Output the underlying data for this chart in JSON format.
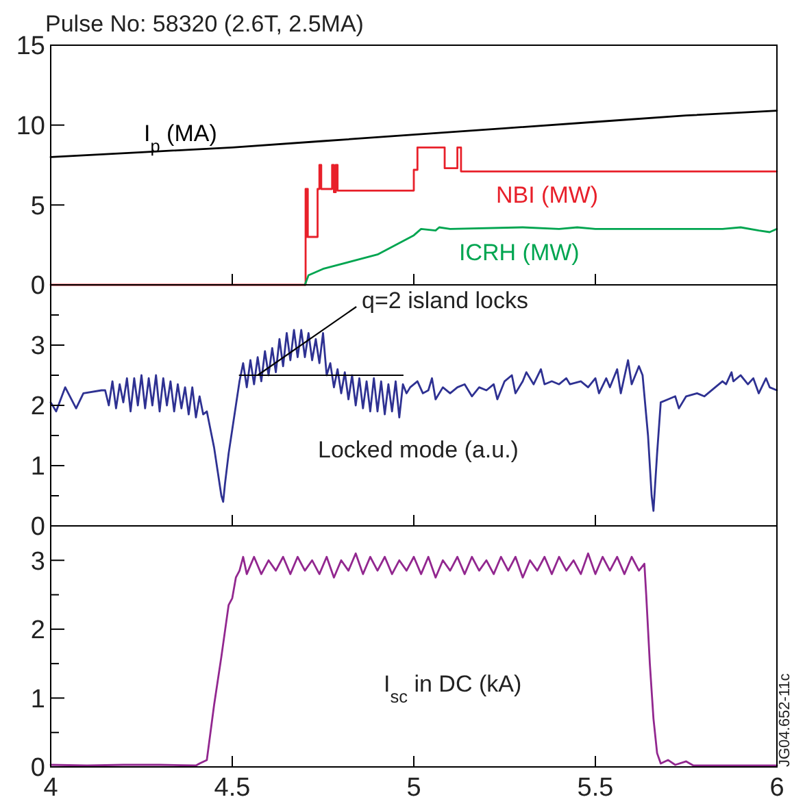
{
  "chart_data": [
    {
      "type": "line",
      "title": "Pulse No: 58320 (2.6T, 2.5MA)",
      "xlim": [
        4,
        6
      ],
      "xticks": [
        4,
        4.5,
        5,
        5.5,
        6
      ],
      "ylim": [
        0,
        15
      ],
      "yticks": [
        0,
        5,
        10,
        15
      ],
      "tick_labels": "y",
      "legend": false,
      "grid": false,
      "series": [
        {
          "name": "I$_{p}$ (MA)",
          "color": "#000000",
          "x": [
            4,
            4.25,
            4.5,
            4.75,
            5,
            5.25,
            5.5,
            5.75,
            6
          ],
          "values": [
            8,
            8.3,
            8.6,
            9.0,
            9.4,
            9.8,
            10.2,
            10.6,
            10.9
          ]
        },
        {
          "name": "NBI (MW)",
          "color": "#e8202a",
          "type": "step",
          "x": [
            4,
            4.7,
            4.702,
            4.704,
            4.706,
            4.708,
            4.735,
            4.74,
            4.745,
            4.775,
            4.78,
            4.785,
            4.79,
            5.0,
            5.01,
            5.085,
            5.12,
            5.13,
            6
          ],
          "values": [
            0,
            0,
            6,
            3,
            6,
            3,
            6,
            7.5,
            6,
            7.5,
            5.8,
            7.5,
            5.9,
            7.2,
            8.6,
            7.3,
            8.6,
            7.1,
            7.1
          ]
        },
        {
          "name": "ICRH (MW)",
          "color": "#00a550",
          "x": [
            4.7,
            4.71,
            4.75,
            4.85,
            4.9,
            4.95,
            5.0,
            5.02,
            5.06,
            5.07,
            5.1,
            5.3,
            5.4,
            5.45,
            5.5,
            5.85,
            5.9,
            5.95,
            5.98,
            6.0
          ],
          "values": [
            0,
            0.6,
            1.0,
            1.6,
            1.9,
            2.5,
            3.1,
            3.5,
            3.4,
            3.6,
            3.5,
            3.6,
            3.5,
            3.6,
            3.5,
            3.5,
            3.6,
            3.4,
            3.3,
            3.5
          ]
        }
      ]
    },
    {
      "type": "line",
      "xlim": [
        4,
        6
      ],
      "xticks": [
        4,
        4.5,
        5,
        5.5,
        6
      ],
      "ylim": [
        0,
        4
      ],
      "yticks": [
        0,
        {
          "value": 0.5,
          "label": null
        },
        1,
        {
          "value": 1.5,
          "label": null
        },
        2,
        {
          "value": 2.5,
          "label": null
        },
        3,
        {
          "value": 3.5,
          "label": null
        }
      ],
      "tick_labels": "y",
      "legend": false,
      "grid": false,
      "annotations": [
        {
          "text": "q=2 island locks",
          "x": 4.57,
          "y": 2.5
        }
      ],
      "series": [
        {
          "name": "Locked mode (a.u.)",
          "color": "#2e3192",
          "x": [
            4,
            4.015,
            4.04,
            4.07,
            4.09,
            4.14,
            4.15,
            4.16,
            4.17,
            4.18,
            4.19,
            4.2,
            4.21,
            4.22,
            4.23,
            4.24,
            4.25,
            4.26,
            4.27,
            4.28,
            4.29,
            4.3,
            4.31,
            4.32,
            4.33,
            4.34,
            4.35,
            4.36,
            4.37,
            4.38,
            4.39,
            4.4,
            4.41,
            4.42,
            4.43,
            4.44,
            4.45,
            4.46,
            4.47,
            4.475,
            4.48,
            4.49,
            4.5,
            4.51,
            4.52,
            4.53,
            4.54,
            4.55,
            4.56,
            4.57,
            4.58,
            4.59,
            4.6,
            4.61,
            4.62,
            4.63,
            4.64,
            4.65,
            4.66,
            4.67,
            4.68,
            4.69,
            4.7,
            4.71,
            4.72,
            4.73,
            4.74,
            4.75,
            4.76,
            4.77,
            4.78,
            4.79,
            4.8,
            4.81,
            4.82,
            4.83,
            4.84,
            4.85,
            4.86,
            4.87,
            4.88,
            4.89,
            4.9,
            4.91,
            4.92,
            4.93,
            4.94,
            4.95,
            4.96,
            4.97,
            4.98,
            4.99,
            5.01,
            5.025,
            5.04,
            5.05,
            5.06,
            5.08,
            5.1,
            5.12,
            5.14,
            5.16,
            5.18,
            5.2,
            5.22,
            5.23,
            5.25,
            5.27,
            5.28,
            5.3,
            5.31,
            5.33,
            5.35,
            5.36,
            5.38,
            5.4,
            5.42,
            5.43,
            5.46,
            5.48,
            5.5,
            5.51,
            5.53,
            5.54,
            5.56,
            5.57,
            5.59,
            5.6,
            5.62,
            5.63,
            5.645,
            5.655,
            5.66,
            5.67,
            5.68,
            5.7,
            5.72,
            5.73,
            5.75,
            5.78,
            5.8,
            5.83,
            5.85,
            5.86,
            5.875,
            5.88,
            5.9,
            5.92,
            5.935,
            5.95,
            5.97,
            5.98,
            6.0
          ],
          "values": [
            2.05,
            1.9,
            2.3,
            1.95,
            2.2,
            2.25,
            2.25,
            2.0,
            2.4,
            1.95,
            2.35,
            2.05,
            2.45,
            1.9,
            2.45,
            2.0,
            2.5,
            1.95,
            2.45,
            2.0,
            2.5,
            1.9,
            2.45,
            2.0,
            2.4,
            1.9,
            2.35,
            1.95,
            2.3,
            1.85,
            2.3,
            1.8,
            2.15,
            1.85,
            1.9,
            1.6,
            1.3,
            0.9,
            0.5,
            0.4,
            0.7,
            1.2,
            1.6,
            2.0,
            2.4,
            2.7,
            2.3,
            2.75,
            2.35,
            2.8,
            2.4,
            2.9,
            2.5,
            2.95,
            2.55,
            3.1,
            2.65,
            3.2,
            2.75,
            3.25,
            2.8,
            3.25,
            2.8,
            3.2,
            2.75,
            3.1,
            2.7,
            3.2,
            2.5,
            2.7,
            2.3,
            2.6,
            2.2,
            2.55,
            2.1,
            2.5,
            2.0,
            2.45,
            1.95,
            2.4,
            1.9,
            2.45,
            1.9,
            2.4,
            1.85,
            2.35,
            1.9,
            2.4,
            1.8,
            2.35,
            2.2,
            2.3,
            2.4,
            2.2,
            2.25,
            2.45,
            2.1,
            2.3,
            2.2,
            2.3,
            2.35,
            2.15,
            2.3,
            2.25,
            2.35,
            2.1,
            2.4,
            2.5,
            2.2,
            2.4,
            2.55,
            2.35,
            2.6,
            2.35,
            2.4,
            2.35,
            2.45,
            2.35,
            2.4,
            2.3,
            2.45,
            2.2,
            2.45,
            2.3,
            2.6,
            2.2,
            2.75,
            2.35,
            2.65,
            2.5,
            1.5,
            0.5,
            0.25,
            1.2,
            2.05,
            2.1,
            2.15,
            1.95,
            2.15,
            2.2,
            2.15,
            2.3,
            2.4,
            2.35,
            2.55,
            2.4,
            2.5,
            2.35,
            2.45,
            2.2,
            2.45,
            2.3,
            2.25
          ]
        },
        {
          "color": "#000000",
          "x": [
            4.52,
            4.97
          ],
          "values": [
            2.5,
            2.5
          ]
        }
      ]
    },
    {
      "type": "line",
      "xlim": [
        4,
        6
      ],
      "xticks": [
        4,
        4.5,
        5,
        5.5,
        6
      ],
      "ylim": [
        0,
        3.5
      ],
      "yticks": [
        0,
        {
          "value": 0.5,
          "label": null
        },
        1,
        {
          "value": 1.5,
          "label": null
        },
        2,
        {
          "value": 2.5,
          "label": null
        },
        3
      ],
      "legend": false,
      "grid": false,
      "annotations": [
        "JG04.652-11c"
      ],
      "series": [
        {
          "name": "I$_{sc}$ in DC (kA)",
          "color": "#92278f",
          "x": [
            4,
            4.1,
            4.2,
            4.3,
            4.4,
            4.41,
            4.43,
            4.45,
            4.47,
            4.49,
            4.5,
            4.51,
            4.52,
            4.53,
            4.54,
            4.56,
            4.58,
            4.6,
            4.62,
            4.64,
            4.66,
            4.68,
            4.7,
            4.72,
            4.74,
            4.76,
            4.78,
            4.8,
            4.82,
            4.84,
            4.86,
            4.88,
            4.9,
            4.92,
            4.94,
            4.96,
            4.98,
            5.0,
            5.02,
            5.04,
            5.06,
            5.08,
            5.1,
            5.12,
            5.14,
            5.16,
            5.18,
            5.2,
            5.22,
            5.24,
            5.26,
            5.28,
            5.3,
            5.32,
            5.34,
            5.36,
            5.38,
            5.4,
            5.42,
            5.44,
            5.46,
            5.48,
            5.5,
            5.52,
            5.54,
            5.56,
            5.58,
            5.6,
            5.62,
            5.635,
            5.64,
            5.65,
            5.66,
            5.67,
            5.68,
            5.7,
            5.72,
            5.75,
            5.77,
            6.0
          ],
          "values": [
            0.03,
            0.02,
            0.03,
            0.03,
            0.02,
            0.05,
            0.1,
            0.9,
            1.6,
            2.35,
            2.45,
            2.75,
            2.85,
            3.05,
            2.8,
            3.05,
            2.8,
            3.0,
            2.85,
            3.05,
            2.8,
            3.05,
            2.85,
            3.0,
            2.8,
            3.05,
            2.75,
            3.0,
            2.85,
            3.1,
            2.8,
            3.05,
            2.85,
            3.05,
            2.8,
            3.0,
            2.85,
            3.05,
            2.8,
            3.05,
            2.75,
            3.0,
            2.85,
            3.05,
            2.8,
            3.05,
            2.85,
            3.0,
            2.8,
            3.05,
            2.85,
            3.05,
            2.75,
            3.0,
            2.85,
            3.05,
            2.8,
            3.05,
            2.85,
            3.0,
            2.8,
            3.1,
            2.8,
            3.05,
            2.85,
            3.05,
            2.8,
            3.05,
            2.85,
            2.95,
            2.5,
            1.5,
            0.7,
            0.2,
            0.05,
            0.1,
            0.03,
            0.08,
            0.02,
            0.02
          ]
        }
      ]
    }
  ]
}
